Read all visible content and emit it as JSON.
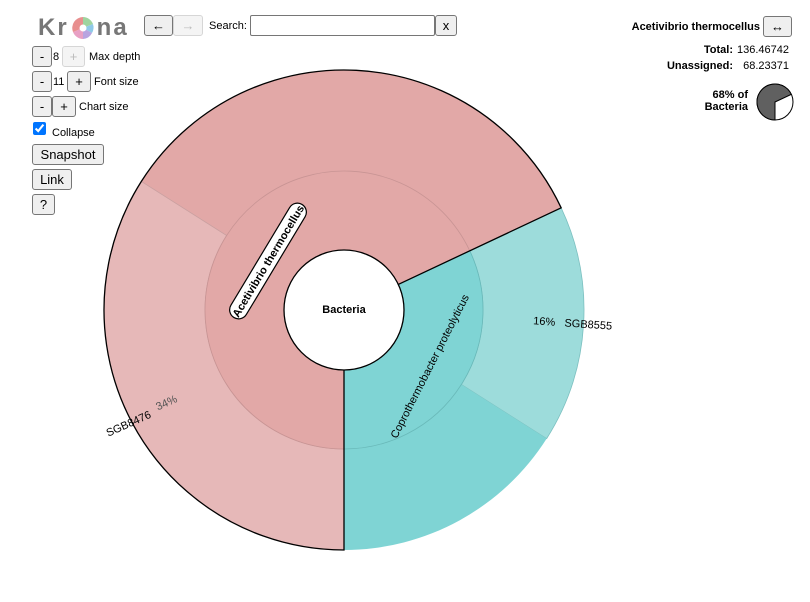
{
  "logo": {
    "text_left": "Kr",
    "text_right": "na"
  },
  "nav": {
    "back_label": "←",
    "forward_label": "→"
  },
  "search": {
    "label": "Search:",
    "value": "",
    "placeholder": "",
    "clear_label": "x"
  },
  "controls": {
    "max_depth": {
      "minus": "-",
      "value": "8",
      "plus": "+",
      "label": "Max depth"
    },
    "font_size": {
      "minus": "-",
      "value": "11",
      "plus": "+",
      "label": "Font size"
    },
    "chart_size": {
      "minus": "-",
      "plus": "+",
      "label": "Chart size"
    },
    "collapse": {
      "label": "Collapse",
      "checked": true
    },
    "snapshot_label": "Snapshot",
    "link_label": "Link",
    "help_label": "?"
  },
  "details": {
    "name": "Acetivibrio thermocellus",
    "swap_label": "↔",
    "total_label": "Total:",
    "total_value": "136.46742",
    "unassigned_label": "Unassigned:",
    "unassigned_value": "68.23371",
    "percent_line1": "68% of",
    "percent_line2": "Bacteria",
    "percent_fraction": 0.68
  },
  "chart_data": {
    "type": "krona",
    "root": "Bacteria",
    "colors": {
      "acetivibrio": "#e2a8a7",
      "acetivibrio_child": "#e6b8b8",
      "coprothermobacter": "#7fd4d4",
      "coprothermobacter_child": "#9ddcdb"
    },
    "nodes": [
      {
        "name": "Acetivibrio thermocellus",
        "level": 1,
        "fraction": 0.68,
        "start": 0.0,
        "selected": true
      },
      {
        "name": "Coprothermobacter proteolyticus",
        "level": 1,
        "fraction": 0.32,
        "start": 0.68
      },
      {
        "name": "SGB8476",
        "level": 2,
        "parent": "Acetivibrio thermocellus",
        "fraction": 0.34,
        "start": 0.0,
        "percent_label": "34%"
      },
      {
        "name": "SGB8555",
        "level": 2,
        "parent": "Coprothermobacter proteolyticus",
        "fraction": 0.16,
        "start": 0.68,
        "percent_label": "16%"
      }
    ]
  }
}
